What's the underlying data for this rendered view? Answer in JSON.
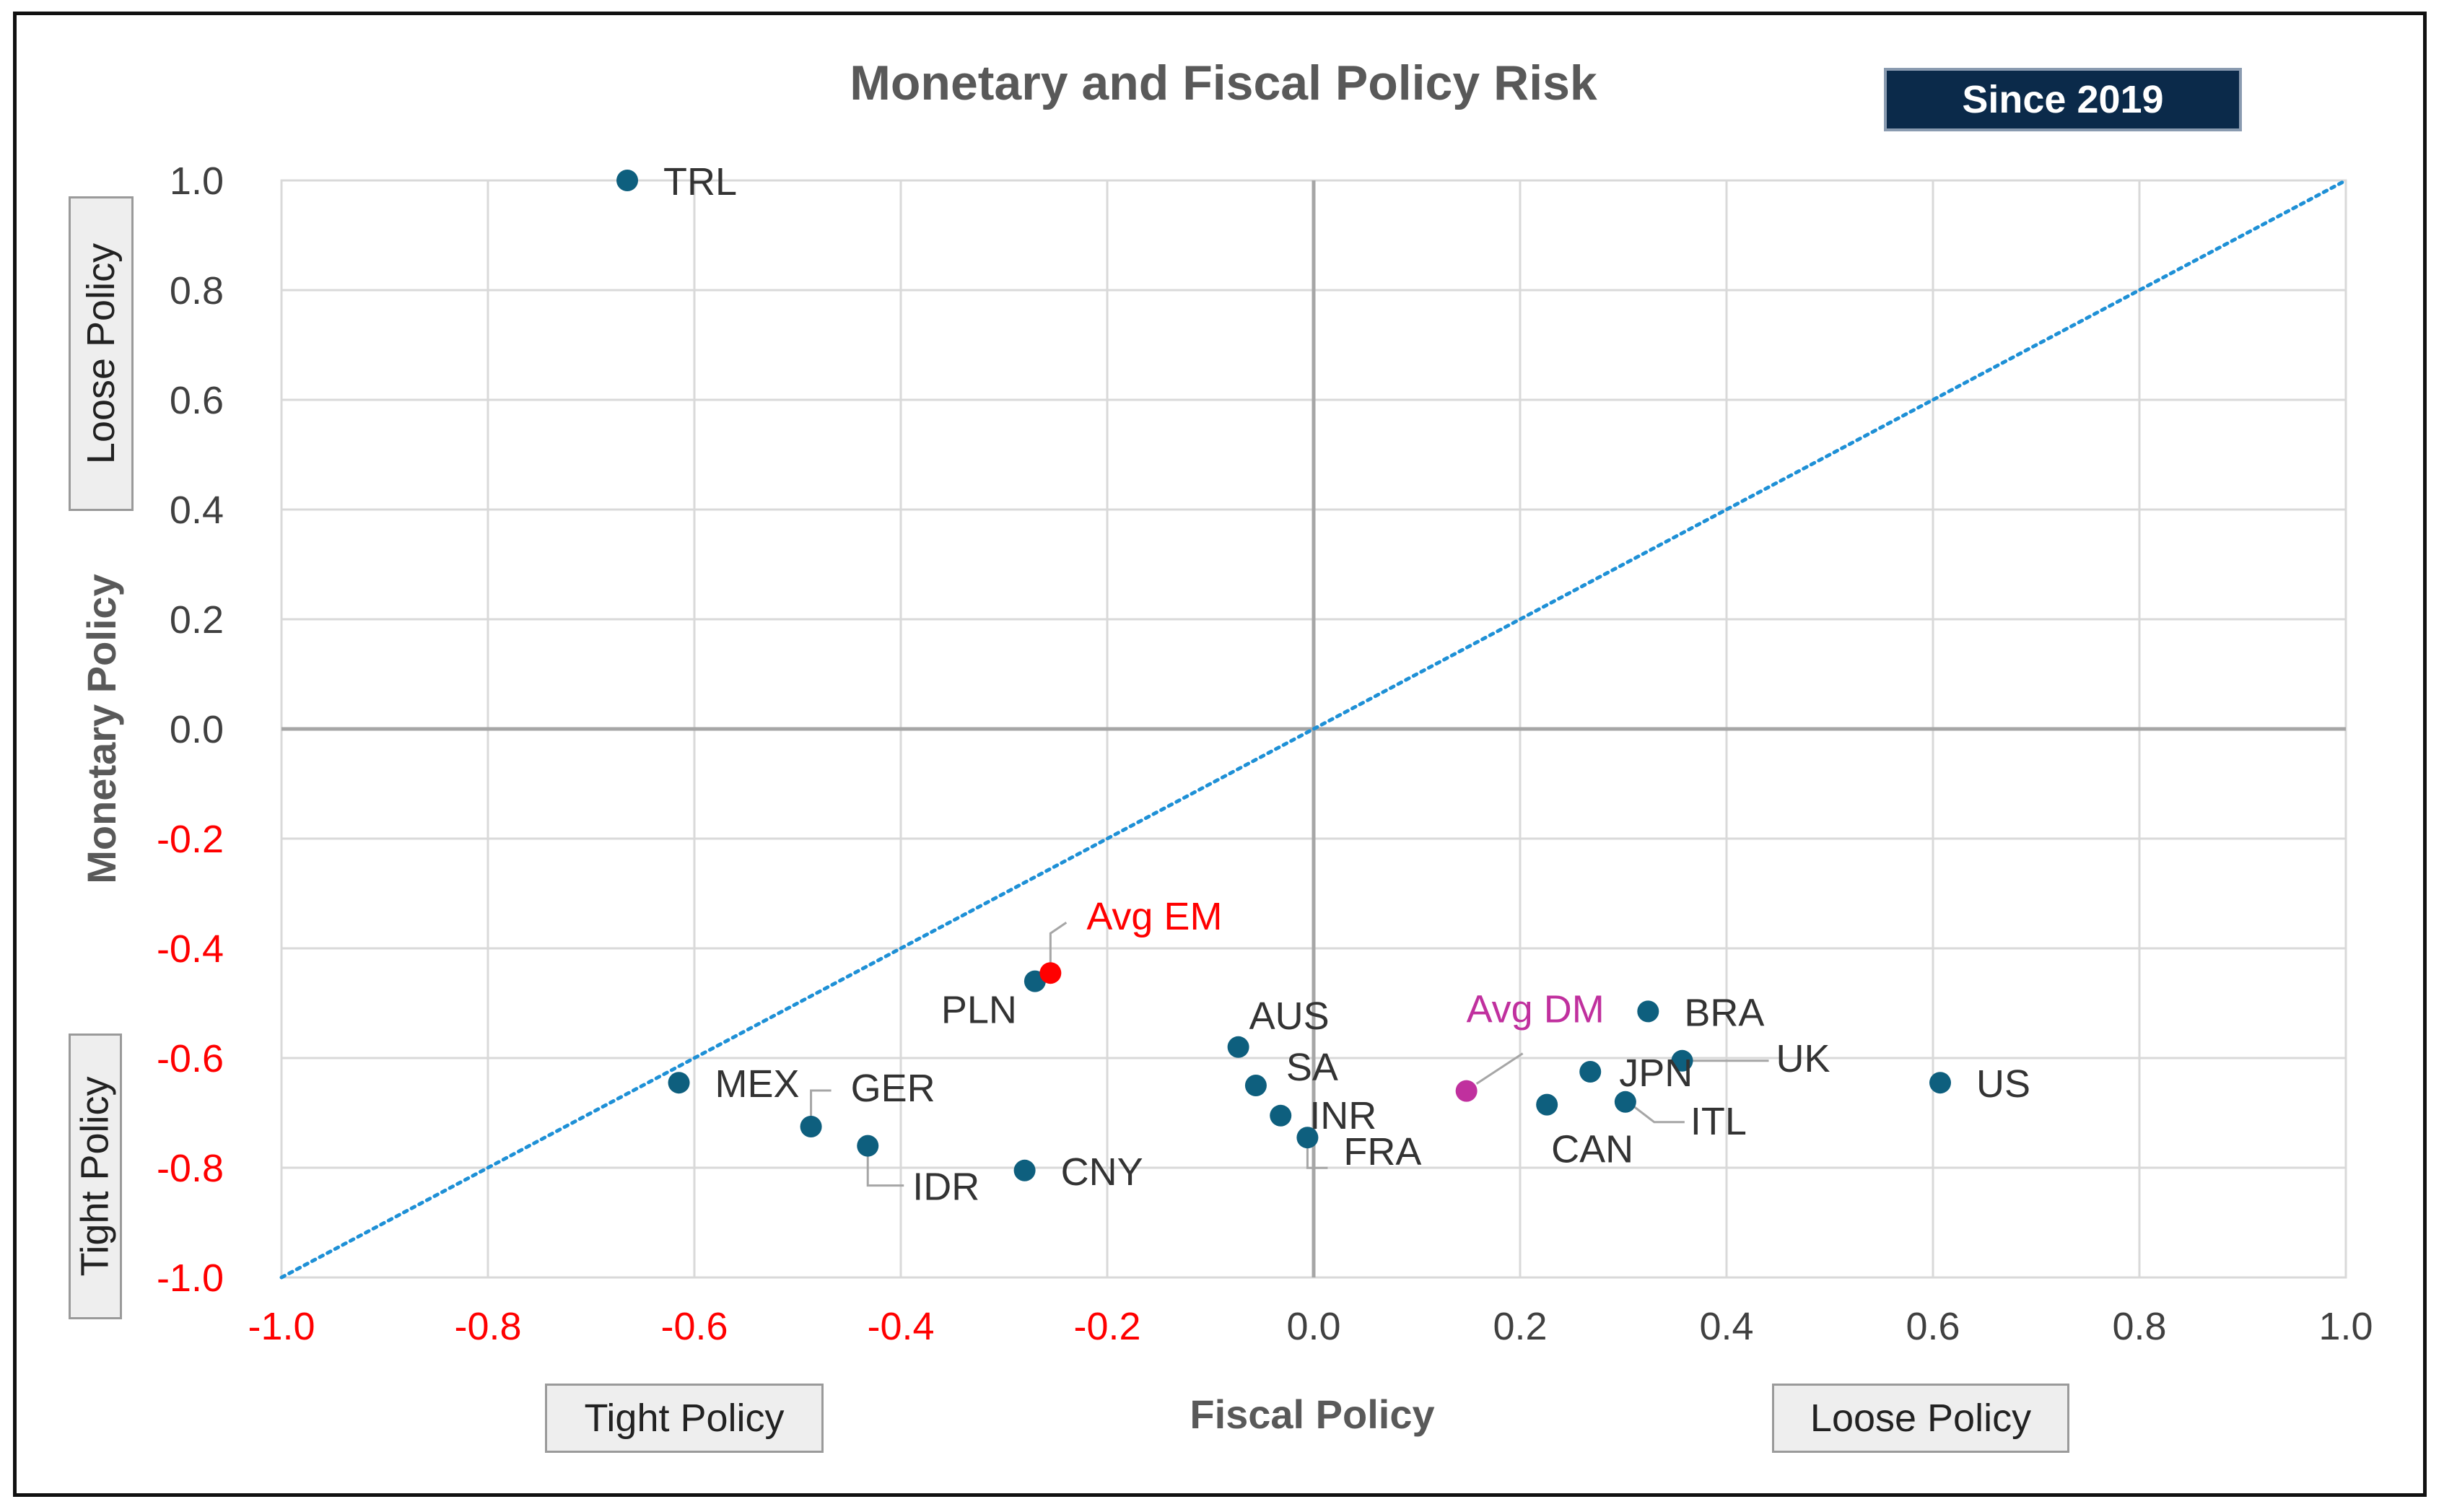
{
  "badge": "Since 2019",
  "policy_boxes": {
    "x_tight": "Tight Policy",
    "x_loose": "Loose Policy",
    "y_loose": "Loose Policy",
    "y_tight": "Tight Policy"
  },
  "colors": {
    "point": "#0e5f7e",
    "avg_em": "#ff0000",
    "avg_dm": "#c0309e",
    "diagonal": "#1e90d6",
    "grid": "#d9d9d9",
    "axis": "#a6a6a6",
    "negative_tick": "#ff0000",
    "tick": "#404040"
  },
  "chart_data": {
    "type": "scatter",
    "title": "Monetary and Fiscal Policy Risk",
    "xlabel": "Fiscal Policy",
    "ylabel": "Monetary Policy",
    "xlim": [
      -1.0,
      1.0
    ],
    "ylim": [
      -1.0,
      1.0
    ],
    "x_ticks": [
      "-1.0",
      "-0.8",
      "-0.6",
      "-0.4",
      "-0.2",
      "0.0",
      "0.2",
      "0.4",
      "0.6",
      "0.8",
      "1.0"
    ],
    "y_ticks": [
      "1.0",
      "0.8",
      "0.6",
      "0.4",
      "0.2",
      "0.0",
      "-0.2",
      "-0.4",
      "-0.6",
      "-0.8",
      "-1.0"
    ],
    "grid": true,
    "reference_line": "y = x (dotted)",
    "points": [
      {
        "label": "TRL",
        "x": -0.665,
        "y": 1.0
      },
      {
        "label": "PLN",
        "x": -0.27,
        "y": -0.46
      },
      {
        "label": "Avg EM",
        "x": -0.255,
        "y": -0.445,
        "kind": "avg_em"
      },
      {
        "label": "MEX",
        "x": -0.615,
        "y": -0.645
      },
      {
        "label": "GER",
        "x": -0.487,
        "y": -0.725
      },
      {
        "label": "IDR",
        "x": -0.432,
        "y": -0.76
      },
      {
        "label": "CNY",
        "x": -0.28,
        "y": -0.805
      },
      {
        "label": "AUS",
        "x": -0.073,
        "y": -0.58
      },
      {
        "label": "SA",
        "x": -0.056,
        "y": -0.65
      },
      {
        "label": "INR",
        "x": -0.032,
        "y": -0.705
      },
      {
        "label": "FRA",
        "x": -0.006,
        "y": -0.745
      },
      {
        "label": "Avg DM",
        "x": 0.148,
        "y": -0.66,
        "kind": "avg_dm"
      },
      {
        "label": "CAN",
        "x": 0.226,
        "y": -0.685
      },
      {
        "label": "JPN",
        "x": 0.268,
        "y": -0.625
      },
      {
        "label": "ITL",
        "x": 0.302,
        "y": -0.68
      },
      {
        "label": "BRA",
        "x": 0.324,
        "y": -0.515
      },
      {
        "label": "UK",
        "x": 0.357,
        "y": -0.605
      },
      {
        "label": "US",
        "x": 0.607,
        "y": -0.645
      }
    ]
  }
}
